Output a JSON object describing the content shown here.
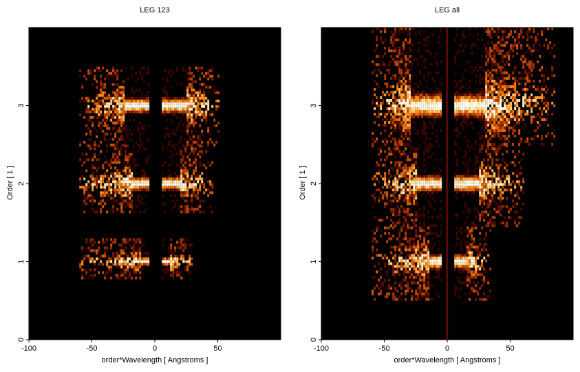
{
  "chart_data": [
    {
      "type": "heatmap",
      "title": "LEG 123",
      "xlabel": "order*Wavelength [ Angstroms ]",
      "ylabel": "Order [ 1 ]",
      "xlim": [
        -100,
        100
      ],
      "ylim": [
        0,
        4
      ],
      "xticks": [
        "-100",
        "-50",
        "0",
        "50"
      ],
      "yticks": [
        "0",
        "1",
        "2",
        "3"
      ],
      "colormap": [
        "#000000",
        "#5a0a00",
        "#b43c00",
        "#ff8c14",
        "#ffe6a0",
        "#ffffff"
      ],
      "bands": [
        {
          "order": 1,
          "y_range": [
            0.8,
            1.3
          ],
          "x_range": [
            -60,
            30
          ],
          "peak_x": [
            -12,
            12
          ]
        },
        {
          "order": 2,
          "y_range": [
            1.65,
            2.5
          ],
          "x_range": [
            -60,
            45
          ],
          "peak_x": [
            -18,
            20
          ]
        },
        {
          "order": 3,
          "y_range": [
            2.5,
            3.5
          ],
          "x_range": [
            -60,
            50
          ],
          "peak_x": [
            -25,
            25
          ]
        }
      ],
      "grid": false,
      "legend": false
    },
    {
      "type": "heatmap",
      "title": "LEG all",
      "xlabel": "order*Wavelength [ Angstroms ]",
      "ylabel": "Order [ 1 ]",
      "xlim": [
        -100,
        100
      ],
      "ylim": [
        0,
        4
      ],
      "xticks": [
        "-100",
        "-50",
        "0",
        "50"
      ],
      "yticks": [
        "0",
        "1",
        "2",
        "3"
      ],
      "colormap": [
        "#000000",
        "#5a0a00",
        "#b43c00",
        "#ff8c14",
        "#ffe6a0",
        "#ffffff"
      ],
      "bands": [
        {
          "order": 1,
          "y_range": [
            0.5,
            1.45
          ],
          "x_range": [
            -60,
            35
          ],
          "peak_x": [
            -15,
            15
          ]
        },
        {
          "order": 2,
          "y_range": [
            1.45,
            2.5
          ],
          "x_range": [
            -60,
            60
          ],
          "peak_x": [
            -25,
            25
          ]
        },
        {
          "order": 3,
          "y_range": [
            2.5,
            4.0
          ],
          "x_range": [
            -60,
            85
          ],
          "peak_x": [
            -30,
            30
          ]
        }
      ],
      "grid": false,
      "legend": false
    }
  ]
}
